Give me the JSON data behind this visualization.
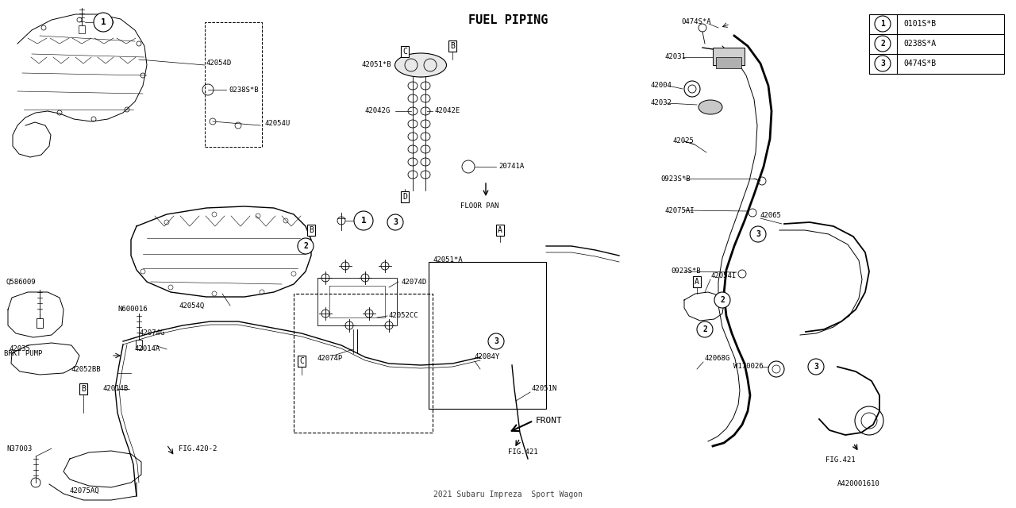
{
  "title": "FUEL PIPING",
  "vehicle": "2021 Subaru Impreza  Sport Wagon",
  "doc_num": "A420001610",
  "bg_color": "#ffffff",
  "line_color": "#000000",
  "fig_width": 12.8,
  "fig_height": 6.4,
  "dpi": 100,
  "legend": [
    {
      "num": "1",
      "code": "0101S*B"
    },
    {
      "num": "2",
      "code": "0238S*A"
    },
    {
      "num": "3",
      "code": "0474S*B"
    }
  ],
  "font_size_small": 6.5,
  "font_size_medium": 8,
  "font_size_title": 11
}
